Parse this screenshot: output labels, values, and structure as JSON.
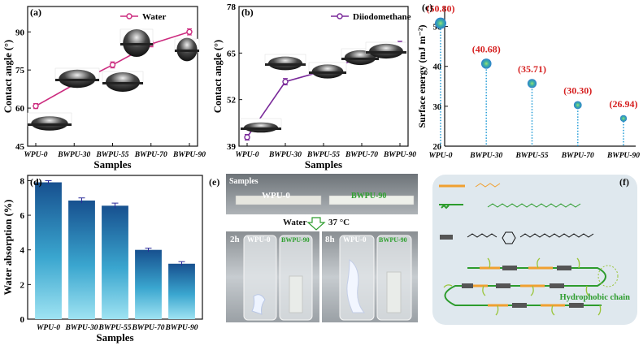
{
  "panels": {
    "a": {
      "letter": "(a)"
    },
    "b": {
      "letter": "(b)"
    },
    "c": {
      "letter": "(c)"
    },
    "d": {
      "letter": "(d)"
    },
    "e": {
      "letter": "(e)",
      "samples_label": "Samples",
      "strip1": "WPU-0",
      "strip2": "BWPU-90",
      "water_label": "Water",
      "temp_label": "37 °C",
      "vial_2h": "2h",
      "vial_8h": "8h",
      "vial_left": "WPU-0",
      "vial_right": "BWPU-90"
    },
    "f": {
      "letter": "(f)",
      "hydrophobic_label": "Hydrophobic chain"
    }
  },
  "chart_data": [
    {
      "id": "a",
      "type": "line",
      "categories": [
        "WPU-0",
        "BWPU-30",
        "BWPU-55",
        "BWPU-70",
        "BWPU-90"
      ],
      "series": [
        {
          "name": "Water",
          "values": [
            60.8,
            69.3,
            77.0,
            85.2,
            90.0
          ],
          "errors": [
            1.0,
            0.7,
            1.2,
            1.1,
            1.2
          ],
          "color": "#cc2c7f"
        }
      ],
      "xlabel": "Samples",
      "ylabel": "Contact angle (°)",
      "ylim": [
        45,
        100
      ],
      "yticks": [
        45,
        60,
        75,
        90
      ],
      "legend": "top-right"
    },
    {
      "id": "b",
      "type": "line",
      "categories": [
        "WPU-0",
        "BWPU-30",
        "BWPU-55",
        "BWPU-70",
        "BWPU-90"
      ],
      "series": [
        {
          "name": "Diiodomethane",
          "values": [
            41.5,
            57.0,
            60.0,
            63.8,
            67.5
          ],
          "errors": [
            0.8,
            0.9,
            0.9,
            0.7,
            0.8
          ],
          "color": "#7a2a9a"
        }
      ],
      "xlabel": "Samples",
      "ylabel": "Contact angle (°)",
      "ylim": [
        39,
        78
      ],
      "yticks": [
        39,
        52,
        65,
        78
      ],
      "legend": "top-right"
    },
    {
      "id": "c",
      "type": "scatter",
      "categories": [
        "WPU-0",
        "BWPU-30",
        "BWPU-55",
        "BWPU-70",
        "BWPU-90"
      ],
      "values": [
        50.8,
        40.68,
        35.71,
        30.3,
        26.94
      ],
      "labels": [
        "(50.80)",
        "(40.68)",
        "(35.71)",
        "(30.30)",
        "(26.94)"
      ],
      "ylabel": "Surface energy (mJ m⁻²)",
      "ylim": [
        20,
        55
      ],
      "yticks": [
        20,
        30,
        40,
        50
      ],
      "label_color": "#d61f1f",
      "point_color": "#2a9fd8"
    },
    {
      "id": "d",
      "type": "bar",
      "categories": [
        "WPU-0",
        "BWPU-30",
        "BWPU-55",
        "BWPU-70",
        "BWPU-90"
      ],
      "values": [
        7.9,
        6.85,
        6.55,
        4.0,
        3.2
      ],
      "errors": [
        0.1,
        0.15,
        0.15,
        0.1,
        0.12
      ],
      "xlabel": "Samples",
      "ylabel": "Water absorption (%)",
      "ylim": [
        0,
        8.3
      ],
      "yticks": [
        0,
        2,
        4,
        6,
        8
      ]
    }
  ]
}
